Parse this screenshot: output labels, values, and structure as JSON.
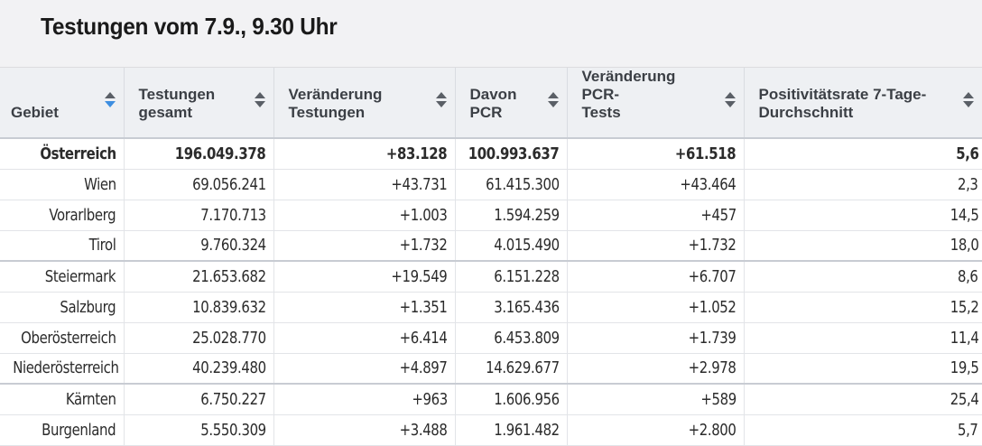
{
  "page": {
    "title": "Testungen vom 7.9., 9.30 Uhr"
  },
  "table": {
    "columns": [
      {
        "label_line1": "Gebiet",
        "label_line2": "",
        "sort": "active"
      },
      {
        "label_line1": "Testungen",
        "label_line2": "gesamt",
        "sort": "none"
      },
      {
        "label_line1": "Veränderung",
        "label_line2": "Testungen",
        "sort": "none"
      },
      {
        "label_line1": "Davon",
        "label_line2": "PCR",
        "sort": "none"
      },
      {
        "label_line1": "Veränderung PCR-",
        "label_line2": "Tests",
        "sort": "none"
      },
      {
        "label_line1": "Positivitätsrate 7-Tage-",
        "label_line2": "Durchschnitt",
        "sort": "none"
      }
    ],
    "rows": [
      [
        "Österreich",
        "196.049.378",
        "+83.128",
        "100.993.637",
        "+61.518",
        "5,6"
      ],
      [
        "Wien",
        "69.056.241",
        "+43.731",
        "61.415.300",
        "+43.464",
        "2,3"
      ],
      [
        "Vorarlberg",
        "7.170.713",
        "+1.003",
        "1.594.259",
        "+457",
        "14,5"
      ],
      [
        "Tirol",
        "9.760.324",
        "+1.732",
        "4.015.490",
        "+1.732",
        "18,0"
      ],
      [
        "Steiermark",
        "21.653.682",
        "+19.549",
        "6.151.228",
        "+6.707",
        "8,6"
      ],
      [
        "Salzburg",
        "10.839.632",
        "+1.351",
        "3.165.436",
        "+1.052",
        "15,2"
      ],
      [
        "Oberösterreich",
        "25.028.770",
        "+6.414",
        "6.453.809",
        "+1.739",
        "11,4"
      ],
      [
        "Niederösterreich",
        "40.239.480",
        "+4.897",
        "14.629.677",
        "+2.978",
        "19,5"
      ],
      [
        "Kärnten",
        "6.750.227",
        "+963",
        "1.606.956",
        "+589",
        "25,4"
      ],
      [
        "Burgenland",
        "5.550.309",
        "+3.488",
        "1.961.482",
        "+2.800",
        "5,7"
      ]
    ]
  },
  "colors": {
    "header_bg": "#eef0f3",
    "title_bg": "#f2f2f4",
    "sort_active": "#3d8ee0",
    "sort_default": "#5a5f66"
  }
}
